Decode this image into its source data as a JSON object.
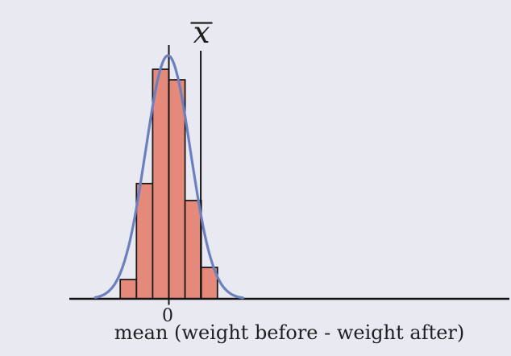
{
  "figure": {
    "background_color": "#e9e9f1",
    "text_color": "#1f1f1f",
    "axis_color": "#141414"
  },
  "chart_data": {
    "type": "bar",
    "subtype": "histogram with fitted normal curve overlay (sampling distribution sketch)",
    "title": "",
    "xlabel": "mean (weight before - weight after)",
    "ylabel": "",
    "grid": false,
    "legend": "none",
    "x_axis": {
      "tick_positions": [
        0
      ],
      "tick_labels": [
        "0"
      ],
      "range_in_bin_widths": [
        -6.15,
        21.0
      ],
      "note": "axis extends far to the right of the distribution; only 0 is labeled"
    },
    "histogram": {
      "bin_edges_in_bin_widths": [
        -3,
        -2,
        -1,
        0,
        1,
        2,
        3
      ],
      "bar_heights_normalized_to_max": [
        0.084,
        0.502,
        1.0,
        0.954,
        0.428,
        0.137
      ],
      "fill_color": "#e5897b",
      "edge_color": "#1a1a1a"
    },
    "normal_curve": {
      "mu": -0.05,
      "sigma": 1.39,
      "peak_height_normalized": 1.06,
      "draw_range": [
        -4.55,
        4.6
      ],
      "color": "#6c80c0"
    },
    "mean_line": {
      "x": 0,
      "tick_label": "0"
    },
    "xbar_line": {
      "x": 1.97,
      "label": "x",
      "label_has_overline": true
    }
  }
}
